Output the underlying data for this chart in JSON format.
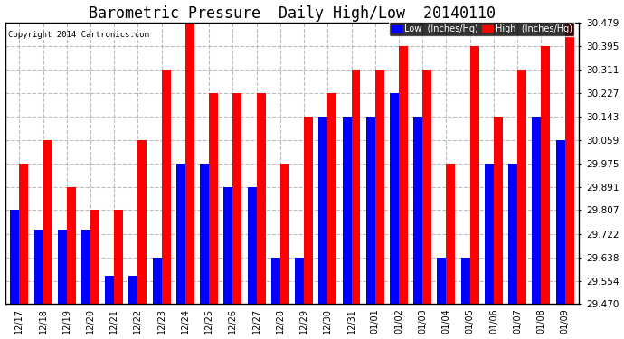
{
  "title": "Barometric Pressure  Daily High/Low  20140110",
  "copyright": "Copyright 2014 Cartronics.com",
  "categories": [
    "12/17",
    "12/18",
    "12/19",
    "12/20",
    "12/21",
    "12/22",
    "12/23",
    "12/24",
    "12/25",
    "12/26",
    "12/27",
    "12/28",
    "12/29",
    "12/30",
    "12/31",
    "01/01",
    "01/02",
    "01/03",
    "01/04",
    "01/05",
    "01/06",
    "01/07",
    "01/08",
    "01/09"
  ],
  "low_values": [
    29.81,
    29.737,
    29.737,
    29.737,
    29.573,
    29.573,
    29.638,
    29.975,
    29.975,
    29.891,
    29.891,
    29.638,
    29.638,
    30.143,
    30.143,
    30.143,
    30.227,
    30.143,
    29.638,
    29.638,
    29.975,
    29.975,
    30.143,
    30.059
  ],
  "high_values": [
    29.975,
    30.059,
    29.891,
    29.807,
    29.807,
    30.059,
    30.311,
    30.479,
    30.227,
    30.227,
    30.227,
    29.975,
    30.143,
    30.227,
    30.311,
    30.311,
    30.395,
    30.311,
    29.975,
    30.395,
    30.143,
    30.311,
    30.395,
    30.479
  ],
  "low_color": "#0000ff",
  "high_color": "#ff0000",
  "background_color": "#ffffff",
  "grid_color": "#bbbbbb",
  "title_fontsize": 12,
  "yticks": [
    29.47,
    29.554,
    29.638,
    29.722,
    29.807,
    29.891,
    29.975,
    30.059,
    30.143,
    30.227,
    30.311,
    30.395,
    30.479
  ],
  "ymin": 29.47,
  "ymax": 30.479,
  "bar_width": 0.38,
  "legend_low": "Low  (Inches/Hg)",
  "legend_high": "High  (Inches/Hg)"
}
